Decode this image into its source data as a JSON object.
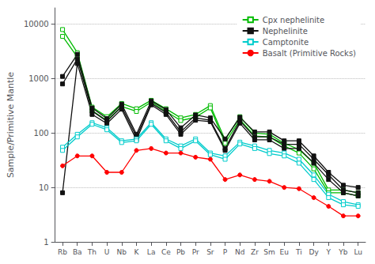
{
  "chart_data": {
    "type": "line",
    "log": "y",
    "ylabel": "Sample/Primitive Mantle",
    "categories": [
      "Rb",
      "Ba",
      "Th",
      "U",
      "Nb",
      "K",
      "La",
      "Ce",
      "Pb",
      "Pr",
      "Sr",
      "P",
      "Nd",
      "Zr",
      "Sm",
      "Eu",
      "Ti",
      "Dy",
      "Y",
      "Yb",
      "Lu"
    ],
    "series": [
      {
        "name": "Cpx nephelinite",
        "color": "#00bb00",
        "marker": "open_square",
        "values": [
          8000,
          3000,
          300,
          200,
          350,
          280,
          400,
          280,
          190,
          220,
          320,
          75,
          200,
          100,
          95,
          65,
          50,
          28,
          9,
          9,
          8
        ]
      },
      {
        "name": "Cpx nephelinite",
        "color": "#00bb00",
        "marker": "open_square",
        "values": [
          6000,
          2500,
          260,
          170,
          310,
          250,
          370,
          250,
          170,
          195,
          290,
          65,
          178,
          88,
          85,
          58,
          43,
          22,
          8,
          8,
          7
        ]
      },
      {
        "name": "Nephelinite",
        "color": "#111111",
        "marker": "square",
        "values": [
          1100,
          2800,
          290,
          185,
          340,
          95,
          390,
          270,
          125,
          215,
          190,
          78,
          195,
          105,
          105,
          72,
          72,
          38,
          19,
          11,
          10
        ]
      },
      {
        "name": "Nephelinite",
        "color": "#111111",
        "marker": "square",
        "values": [
          800,
          2300,
          255,
          165,
          305,
          85,
          350,
          240,
          105,
          190,
          172,
          52,
          168,
          85,
          85,
          62,
          62,
          33,
          17,
          9,
          8
        ]
      },
      {
        "name": "Nephelinite",
        "color": "#111111",
        "marker": "square",
        "values": [
          8,
          1900,
          220,
          150,
          275,
          75,
          330,
          220,
          95,
          172,
          162,
          48,
          152,
          75,
          75,
          52,
          52,
          28,
          14,
          8,
          7
        ]
      },
      {
        "name": "Camptonite",
        "color": "#00cccc",
        "marker": "open_square",
        "values": [
          55,
          95,
          155,
          125,
          72,
          78,
          155,
          78,
          58,
          78,
          43,
          38,
          68,
          58,
          48,
          43,
          33,
          17,
          7.5,
          5.5,
          4.8
        ]
      },
      {
        "name": "Camptonite",
        "color": "#00cccc",
        "marker": "open_square",
        "values": [
          48,
          85,
          145,
          115,
          67,
          72,
          145,
          72,
          52,
          72,
          40,
          33,
          63,
          52,
          42,
          38,
          28,
          14,
          6.5,
          4.8,
          4.5
        ]
      },
      {
        "name": "Basalt (Primitive Rocks)",
        "color": "#ff0000",
        "marker": "circle",
        "values": [
          25,
          38,
          38,
          19,
          19,
          48,
          52,
          43,
          43,
          36,
          33,
          14,
          17,
          14,
          13,
          10,
          9.5,
          6.5,
          4.5,
          3,
          3
        ]
      }
    ],
    "ylim": [
      1,
      20000
    ],
    "yticks": [
      1,
      10,
      100,
      1000,
      10000
    ],
    "grid": true,
    "legend": "upper right"
  }
}
